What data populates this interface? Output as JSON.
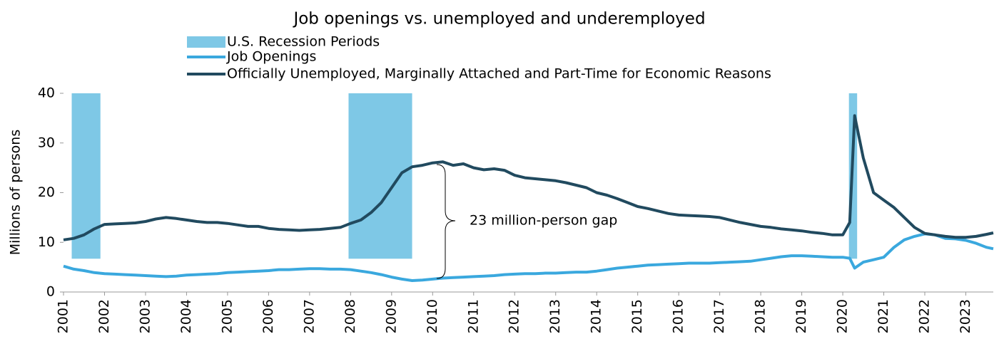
{
  "chart_data": {
    "type": "line",
    "title": "Job openings vs. unemployed and underemployed",
    "y_label": "Millions of persons",
    "annotation": "23 million-person gap",
    "recessions": {
      "name": "U.S. Recession Periods",
      "color": "#7ec8e6",
      "bottom": 6.7,
      "top": 40,
      "ranges": [
        [
          2001.2,
          2001.9
        ],
        [
          2007.95,
          2009.5
        ],
        [
          2020.15,
          2020.35
        ]
      ]
    },
    "x": [
      2001,
      2001.25,
      2001.5,
      2001.75,
      2002,
      2002.25,
      2002.5,
      2002.75,
      2003,
      2003.25,
      2003.5,
      2003.75,
      2004,
      2004.25,
      2004.5,
      2004.75,
      2005,
      2005.25,
      2005.5,
      2005.75,
      2006,
      2006.25,
      2006.5,
      2006.75,
      2007,
      2007.25,
      2007.5,
      2007.75,
      2008,
      2008.25,
      2008.5,
      2008.75,
      2009,
      2009.25,
      2009.5,
      2009.75,
      2010,
      2010.25,
      2010.5,
      2010.75,
      2011,
      2011.25,
      2011.5,
      2011.75,
      2012,
      2012.25,
      2012.5,
      2012.75,
      2013,
      2013.25,
      2013.5,
      2013.75,
      2014,
      2014.25,
      2014.5,
      2014.75,
      2015,
      2015.25,
      2015.5,
      2015.75,
      2016,
      2016.25,
      2016.5,
      2016.75,
      2017,
      2017.25,
      2017.5,
      2017.75,
      2018,
      2018.25,
      2018.5,
      2018.75,
      2019,
      2019.25,
      2019.5,
      2019.75,
      2020,
      2020.17,
      2020.29,
      2020.5,
      2020.75,
      2021,
      2021.25,
      2021.5,
      2021.75,
      2022,
      2022.25,
      2022.5,
      2022.75,
      2023,
      2023.25,
      2023.5,
      2023.67
    ],
    "series": [
      {
        "name": "Job Openings",
        "color": "#3aa8de",
        "values": [
          5.2,
          4.6,
          4.3,
          3.9,
          3.7,
          3.6,
          3.5,
          3.4,
          3.3,
          3.2,
          3.1,
          3.2,
          3.4,
          3.5,
          3.6,
          3.7,
          3.9,
          4.0,
          4.1,
          4.2,
          4.3,
          4.5,
          4.5,
          4.6,
          4.7,
          4.7,
          4.6,
          4.6,
          4.5,
          4.2,
          3.9,
          3.5,
          3.0,
          2.6,
          2.3,
          2.4,
          2.6,
          2.8,
          2.9,
          3.0,
          3.1,
          3.2,
          3.3,
          3.5,
          3.6,
          3.7,
          3.7,
          3.8,
          3.8,
          3.9,
          4.0,
          4.0,
          4.2,
          4.5,
          4.8,
          5.0,
          5.2,
          5.4,
          5.5,
          5.6,
          5.7,
          5.8,
          5.8,
          5.8,
          5.9,
          6.0,
          6.1,
          6.2,
          6.5,
          6.8,
          7.1,
          7.3,
          7.3,
          7.2,
          7.1,
          7.0,
          7.0,
          6.8,
          4.8,
          6.0,
          6.5,
          7.0,
          9.0,
          10.5,
          11.2,
          11.7,
          11.5,
          10.8,
          10.7,
          10.4,
          9.8,
          9.0,
          8.7
        ]
      },
      {
        "name": "Officially Unemployed, Marginally Attached and Part-Time for Economic Reasons",
        "color": "#214a5f",
        "values": [
          10.5,
          10.8,
          11.5,
          12.7,
          13.6,
          13.7,
          13.8,
          13.9,
          14.2,
          14.7,
          15.0,
          14.8,
          14.5,
          14.2,
          14.0,
          14.0,
          13.8,
          13.5,
          13.2,
          13.2,
          12.8,
          12.6,
          12.5,
          12.4,
          12.5,
          12.6,
          12.8,
          13.0,
          13.8,
          14.5,
          16.0,
          18.0,
          21.0,
          24.0,
          25.2,
          25.5,
          26.0,
          26.2,
          25.5,
          25.8,
          25.0,
          24.6,
          24.8,
          24.5,
          23.5,
          23.0,
          22.8,
          22.6,
          22.4,
          22.0,
          21.5,
          21.0,
          20.0,
          19.5,
          18.8,
          18.0,
          17.2,
          16.8,
          16.3,
          15.8,
          15.5,
          15.4,
          15.3,
          15.2,
          15.0,
          14.5,
          14.0,
          13.6,
          13.2,
          13.0,
          12.7,
          12.5,
          12.3,
          12.0,
          11.8,
          11.5,
          11.5,
          14.0,
          35.5,
          27.0,
          20.0,
          18.5,
          17.0,
          15.0,
          13.0,
          11.8,
          11.5,
          11.2,
          11.0,
          11.0,
          11.2,
          11.6,
          11.9
        ]
      }
    ],
    "xlim": [
      2001,
      2023.67
    ],
    "xticks": [
      2001,
      2002,
      2003,
      2004,
      2005,
      2006,
      2007,
      2008,
      2009,
      2010,
      2011,
      2012,
      2013,
      2014,
      2015,
      2016,
      2017,
      2018,
      2019,
      2020,
      2021,
      2022,
      2023
    ],
    "ylim": [
      0,
      40
    ],
    "yticks": [
      0,
      10,
      20,
      30,
      40
    ],
    "grid": false
  }
}
